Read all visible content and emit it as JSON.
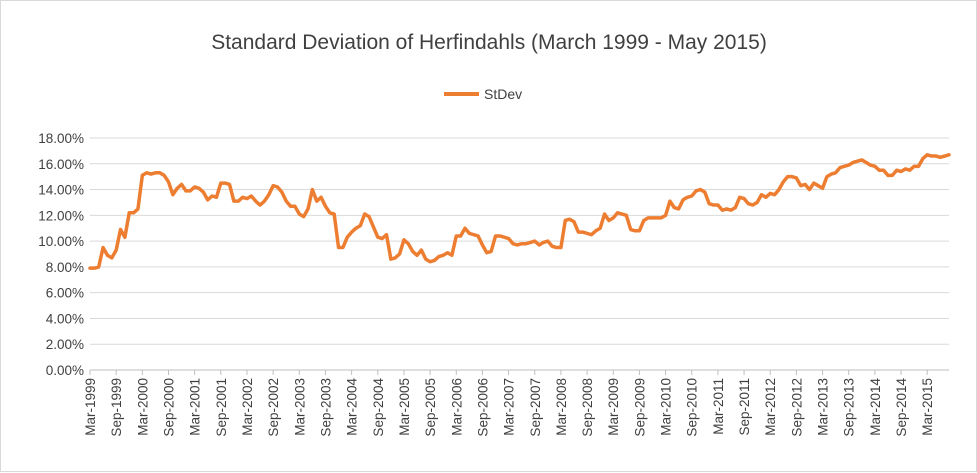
{
  "chart_data": {
    "type": "line",
    "title": "Standard Deviation of Herfindahls (March 1999 - May 2015)",
    "xlabel": "",
    "ylabel": "",
    "ylim": [
      0,
      0.18
    ],
    "y_ticks": [
      "0.00%",
      "2.00%",
      "4.00%",
      "6.00%",
      "8.00%",
      "10.00%",
      "12.00%",
      "14.00%",
      "16.00%",
      "18.00%"
    ],
    "x_tick_labels": [
      "Mar-1999",
      "Sep-1999",
      "Mar-2000",
      "Sep-2000",
      "Mar-2001",
      "Sep-2001",
      "Mar-2002",
      "Sep-2002",
      "Mar-2003",
      "Sep-2003",
      "Mar-2004",
      "Sep-2004",
      "Mar-2005",
      "Sep-2005",
      "Mar-2006",
      "Sep-2006",
      "Mar-2007",
      "Sep-2007",
      "Mar-2008",
      "Sep-2008",
      "Mar-2009",
      "Sep-2009",
      "Mar-2010",
      "Sep-2010",
      "Mar-2011",
      "Sep-2011",
      "Mar-2012",
      "Sep-2012",
      "Mar-2013",
      "Sep-2013",
      "Mar-2014",
      "Sep-2014",
      "Mar-2015"
    ],
    "x_start": "Mar-1999",
    "x_end": "May-2015",
    "legend_position": "top-center",
    "grid": true,
    "series": [
      {
        "name": "StDev",
        "color": "#ED7D31",
        "values": [
          0.079,
          0.079,
          0.08,
          0.095,
          0.089,
          0.087,
          0.093,
          0.109,
          0.103,
          0.122,
          0.122,
          0.125,
          0.151,
          0.153,
          0.152,
          0.153,
          0.153,
          0.151,
          0.146,
          0.136,
          0.141,
          0.144,
          0.139,
          0.139,
          0.142,
          0.141,
          0.138,
          0.132,
          0.135,
          0.134,
          0.145,
          0.145,
          0.144,
          0.131,
          0.131,
          0.134,
          0.133,
          0.135,
          0.131,
          0.128,
          0.131,
          0.136,
          0.143,
          0.142,
          0.138,
          0.131,
          0.127,
          0.127,
          0.121,
          0.119,
          0.125,
          0.14,
          0.131,
          0.134,
          0.127,
          0.122,
          0.121,
          0.095,
          0.095,
          0.103,
          0.107,
          0.11,
          0.112,
          0.121,
          0.119,
          0.111,
          0.103,
          0.102,
          0.105,
          0.086,
          0.087,
          0.09,
          0.101,
          0.098,
          0.092,
          0.089,
          0.093,
          0.086,
          0.084,
          0.085,
          0.088,
          0.089,
          0.091,
          0.089,
          0.104,
          0.104,
          0.11,
          0.106,
          0.105,
          0.104,
          0.097,
          0.091,
          0.092,
          0.104,
          0.104,
          0.103,
          0.102,
          0.098,
          0.097,
          0.098,
          0.098,
          0.099,
          0.1,
          0.097,
          0.099,
          0.1,
          0.096,
          0.095,
          0.095,
          0.116,
          0.117,
          0.115,
          0.107,
          0.107,
          0.106,
          0.105,
          0.108,
          0.11,
          0.121,
          0.116,
          0.118,
          0.122,
          0.121,
          0.12,
          0.109,
          0.108,
          0.108,
          0.116,
          0.118,
          0.118,
          0.118,
          0.118,
          0.12,
          0.131,
          0.126,
          0.125,
          0.132,
          0.134,
          0.135,
          0.139,
          0.14,
          0.138,
          0.129,
          0.128,
          0.128,
          0.124,
          0.125,
          0.124,
          0.126,
          0.134,
          0.133,
          0.129,
          0.128,
          0.13,
          0.136,
          0.134,
          0.137,
          0.136,
          0.14,
          0.146,
          0.15,
          0.15,
          0.149,
          0.143,
          0.144,
          0.14,
          0.145,
          0.143,
          0.141,
          0.15,
          0.152,
          0.153,
          0.157,
          0.158,
          0.159,
          0.161,
          0.162,
          0.163,
          0.161,
          0.159,
          0.158,
          0.155,
          0.155,
          0.151,
          0.151,
          0.155,
          0.154,
          0.156,
          0.155,
          0.158,
          0.158,
          0.164,
          0.167,
          0.166,
          0.166,
          0.165,
          0.166,
          0.167
        ]
      }
    ]
  }
}
